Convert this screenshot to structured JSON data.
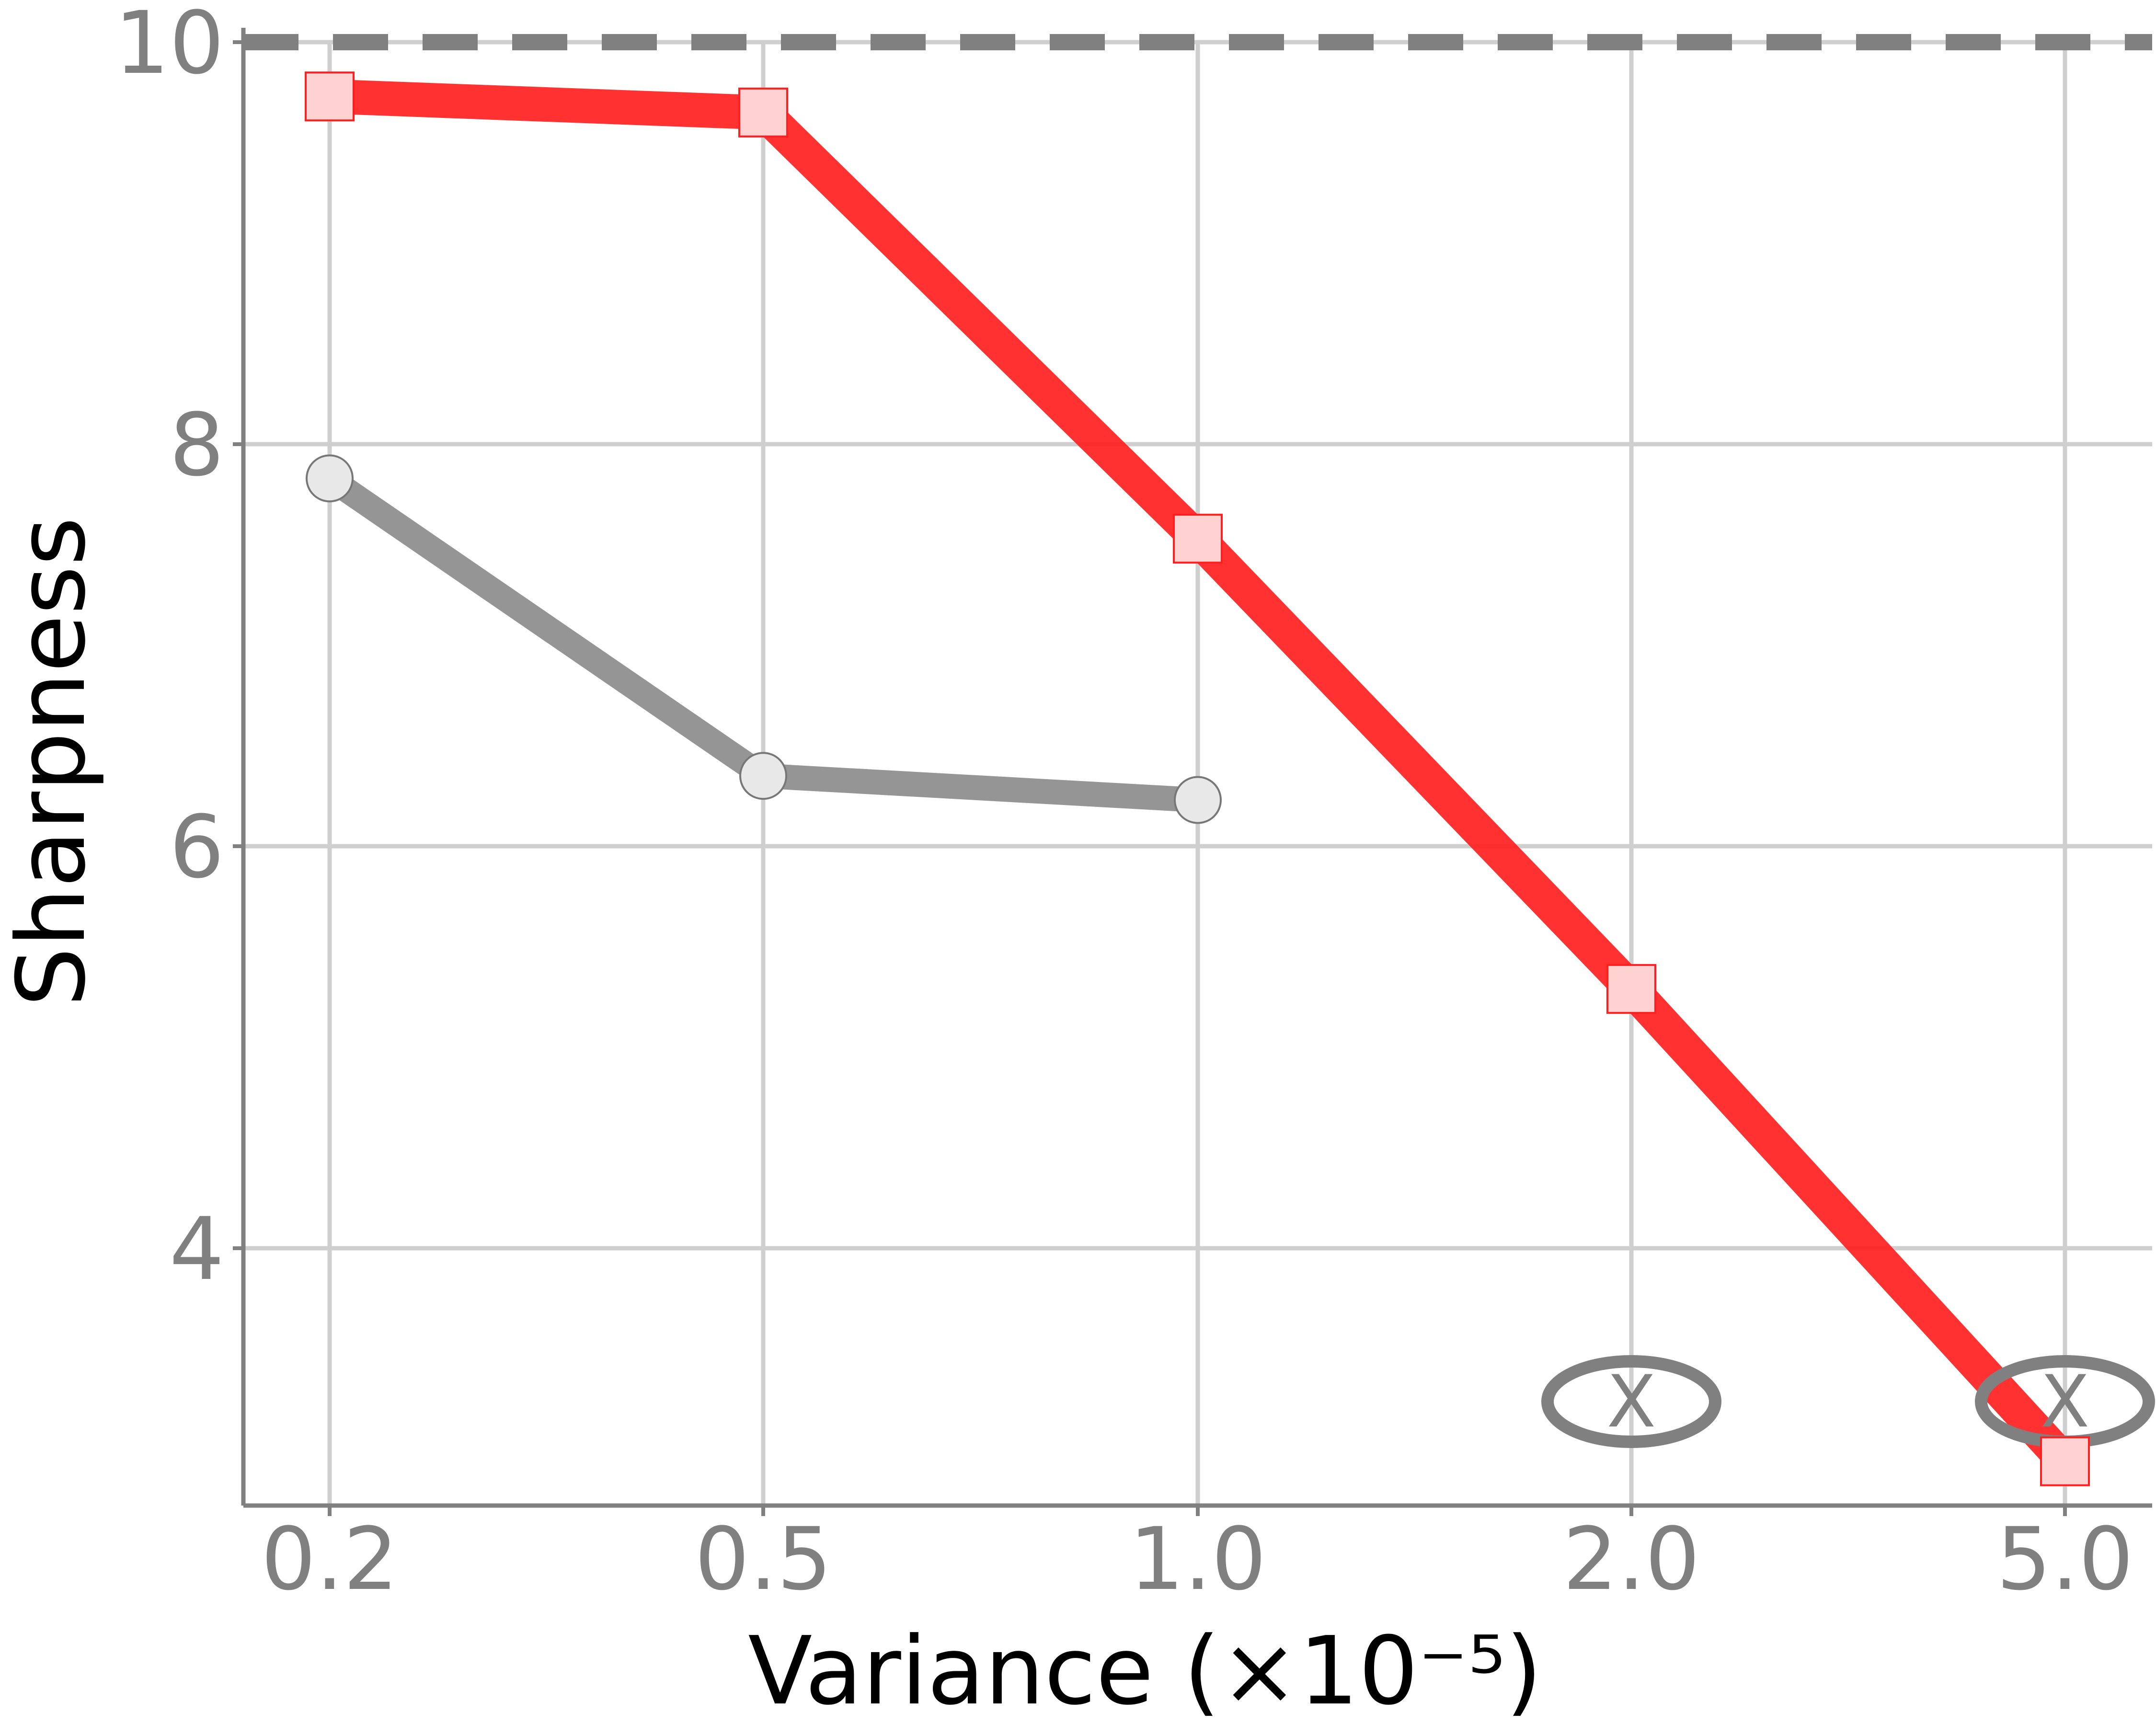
{
  "chart_data": {
    "type": "line",
    "xlabel": "Variance (×10⁻⁵)",
    "ylabel": "Sharpness",
    "categories": [
      "0.2",
      "0.5",
      "1.0",
      "2.0",
      "5.0"
    ],
    "y_ticks": [
      "4",
      "6",
      "8",
      "10"
    ],
    "ylim": [
      2.72,
      10.0
    ],
    "grid": true,
    "reference_line": {
      "y": 10.0,
      "style": "dashed",
      "color": "#808080"
    },
    "series": [
      {
        "color": "#ff1f1f",
        "marker": "square",
        "marker_fill": "#ffd2d2",
        "values": [
          9.73,
          9.65,
          7.53,
          5.29,
          2.94
        ]
      },
      {
        "color": "#8c8c8c",
        "marker": "circle",
        "marker_fill": "#e8e8e8",
        "values": [
          7.83,
          6.35,
          6.23,
          null,
          null
        ]
      }
    ],
    "failure_markers": [
      {
        "x": "2.0",
        "label": "X"
      },
      {
        "x": "5.0",
        "label": "X"
      }
    ]
  }
}
